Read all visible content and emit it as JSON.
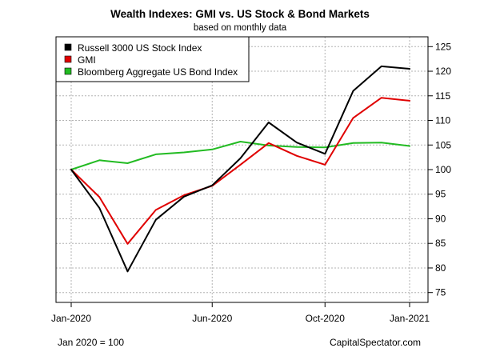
{
  "chart_data": {
    "type": "line",
    "title": "Wealth Indexes: GMI vs. US Stock & Bond Markets",
    "subtitle": "based on monthly data",
    "x": [
      "2020-01",
      "2020-02",
      "2020-03",
      "2020-04",
      "2020-05",
      "2020-06",
      "2020-07",
      "2020-08",
      "2020-09",
      "2020-10",
      "2020-11",
      "2020-12",
      "2021-01"
    ],
    "x_tick_labels": [
      "Jan-2020",
      "Jun-2020",
      "Oct-2020",
      "Jan-2021"
    ],
    "x_tick_months": [
      0,
      5,
      9,
      12
    ],
    "xlabel": "",
    "ylabel": "",
    "ylim": [
      73,
      127
    ],
    "y_ticks": [
      75,
      80,
      85,
      90,
      95,
      100,
      105,
      110,
      115,
      120,
      125
    ],
    "y_axis_side": "right",
    "grid": true,
    "legend_position": "top-left",
    "series": [
      {
        "name": "Russell 3000 US Stock Index",
        "color": "#000000",
        "values": [
          100,
          92.2,
          79.3,
          89.8,
          94.5,
          96.8,
          102.3,
          109.6,
          105.5,
          103.2,
          116.0,
          121.0,
          120.5
        ]
      },
      {
        "name": "GMI",
        "color": "#e00000",
        "values": [
          100,
          94.4,
          84.9,
          91.8,
          94.8,
          96.7,
          101.0,
          105.4,
          102.8,
          101.0,
          110.5,
          114.6,
          114.0
        ]
      },
      {
        "name": "Bloomberg Aggregate US Bond Index",
        "color": "#22bb22",
        "values": [
          100,
          101.9,
          101.3,
          103.1,
          103.5,
          104.1,
          105.7,
          104.9,
          104.6,
          104.5,
          105.4,
          105.5,
          104.8
        ]
      }
    ]
  },
  "footer": {
    "left": "Jan 2020 = 100",
    "right": "CapitalSpectator.com"
  }
}
